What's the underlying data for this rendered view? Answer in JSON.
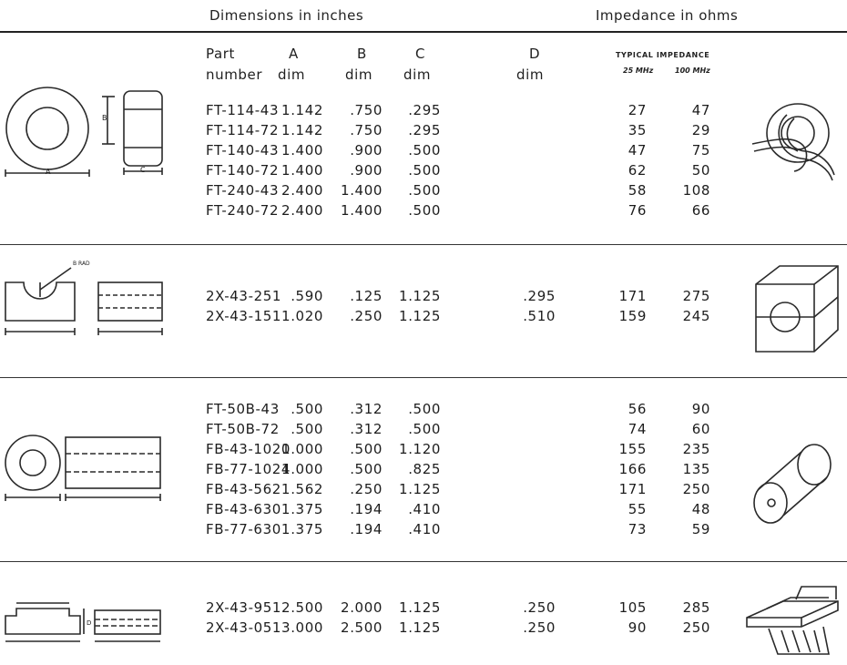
{
  "header": {
    "dimensions": "Dimensions in inches",
    "impedance": "Impedance in ohms"
  },
  "columns": {
    "part_line1": "Part",
    "part_line2": "number",
    "a_line1": "A",
    "b_line1": "B",
    "c_line1": "C",
    "d_line1": "D",
    "dim": "dim",
    "typical_impedance": "TYPICAL IMPEDANCE",
    "z25": "25 MHz",
    "z100": "100 MHz"
  },
  "diagram_labels": {
    "a": "A",
    "b": "B",
    "c": "C",
    "d": "D",
    "rad": "B RAD"
  },
  "sections": [
    {
      "shape": "toroid",
      "rows": [
        {
          "part": "FT-114-43",
          "a": "1.142",
          "b": ".750",
          "c": ".295",
          "d": "",
          "z25": "27",
          "z100": "47"
        },
        {
          "part": "FT-114-72",
          "a": "1.142",
          "b": ".750",
          "c": ".295",
          "d": "",
          "z25": "35",
          "z100": "29"
        },
        {
          "part": "FT-140-43",
          "a": "1.400",
          "b": ".900",
          "c": ".500",
          "d": "",
          "z25": "47",
          "z100": "75"
        },
        {
          "part": "FT-140-72",
          "a": "1.400",
          "b": ".900",
          "c": ".500",
          "d": "",
          "z25": "62",
          "z100": "50"
        },
        {
          "part": "FT-240-43",
          "a": "2.400",
          "b": "1.400",
          "c": ".500",
          "d": "",
          "z25": "58",
          "z100": "108"
        },
        {
          "part": "FT-240-72",
          "a": "2.400",
          "b": "1.400",
          "c": ".500",
          "d": "",
          "z25": "76",
          "z100": "66"
        }
      ]
    },
    {
      "shape": "split-block",
      "rows": [
        {
          "part": "2X-43-251",
          "a": ".590",
          "b": ".125",
          "c": "1.125",
          "d": ".295",
          "z25": "171",
          "z100": "275"
        },
        {
          "part": "2X-43-151",
          "a": "1.020",
          "b": ".250",
          "c": "1.125",
          "d": ".510",
          "z25": "159",
          "z100": "245"
        }
      ]
    },
    {
      "shape": "bead",
      "rows": [
        {
          "part": "FT-50B-43",
          "a": ".500",
          "b": ".312",
          "c": ".500",
          "d": "",
          "z25": "56",
          "z100": "90"
        },
        {
          "part": "FT-50B-72",
          "a": ".500",
          "b": ".312",
          "c": ".500",
          "d": "",
          "z25": "74",
          "z100": "60"
        },
        {
          "part": "FB-43-1020",
          "a": "1.000",
          "b": ".500",
          "c": "1.120",
          "d": "",
          "z25": "155",
          "z100": "235"
        },
        {
          "part": "FB-77-1024",
          "a": "1.000",
          "b": ".500",
          "c": ".825",
          "d": "",
          "z25": "166",
          "z100": "135"
        },
        {
          "part": "FB-43-5621",
          "a": ".562",
          "b": ".250",
          "c": "1.125",
          "d": "",
          "z25": "171",
          "z100": "250"
        },
        {
          "part": "FB-43-6301",
          "a": ".375",
          "b": ".194",
          "c": ".410",
          "d": "",
          "z25": "55",
          "z100": "48"
        },
        {
          "part": "FB-77-6301",
          "a": ".375",
          "b": ".194",
          "c": ".410",
          "d": "",
          "z25": "73",
          "z100": "59"
        }
      ]
    },
    {
      "shape": "flat-cable-core",
      "rows": [
        {
          "part": "2X-43-951",
          "a": "2.500",
          "b": "2.000",
          "c": "1.125",
          "d": ".250",
          "z25": "105",
          "z100": "285"
        },
        {
          "part": "2X-43-051",
          "a": "3.000",
          "b": "2.500",
          "c": "1.125",
          "d": ".250",
          "z25": "90",
          "z100": "250"
        }
      ]
    }
  ]
}
